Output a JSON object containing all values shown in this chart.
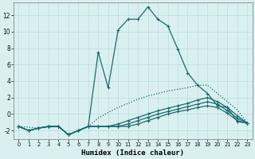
{
  "xlabel": "Humidex (Indice chaleur)",
  "bg_color": "#daf0f0",
  "line_color": "#1a6b6b",
  "grid_color": "#b8dede",
  "xlim": [
    -0.5,
    23.5
  ],
  "ylim": [
    -3.0,
    13.5
  ],
  "xticks": [
    0,
    1,
    2,
    3,
    4,
    5,
    6,
    7,
    8,
    9,
    10,
    11,
    12,
    13,
    14,
    15,
    16,
    17,
    18,
    19,
    20,
    21,
    22,
    23
  ],
  "yticks": [
    -2,
    0,
    2,
    4,
    6,
    8,
    10,
    12
  ],
  "series": [
    {
      "x": [
        0,
        1,
        2,
        3,
        4,
        5,
        6,
        7,
        8,
        9,
        10,
        11,
        12,
        13,
        14,
        15,
        16,
        17,
        18,
        19,
        20,
        21,
        22,
        23
      ],
      "y": [
        -1.5,
        -2.0,
        -1.7,
        -1.5,
        -1.5,
        -2.5,
        -2.0,
        -1.5,
        7.5,
        3.2,
        10.2,
        11.5,
        11.5,
        13.0,
        11.5,
        10.7,
        7.9,
        5.0,
        3.5,
        2.5,
        1.0,
        0.8,
        -0.9,
        -1.1
      ],
      "linestyle": "-",
      "linewidth": 0.9,
      "marker": true
    },
    {
      "x": [
        0,
        2,
        4,
        5,
        6,
        7,
        8,
        9,
        10,
        11,
        12,
        13,
        14,
        15,
        16,
        17,
        18,
        19,
        20,
        21,
        22,
        23
      ],
      "y": [
        -1.5,
        -1.7,
        -1.5,
        -2.5,
        -2.0,
        -1.5,
        -0.5,
        0.2,
        0.8,
        1.3,
        1.8,
        2.2,
        2.5,
        2.8,
        3.0,
        3.2,
        3.5,
        3.5,
        2.5,
        1.5,
        0.5,
        -1.1
      ],
      "linestyle": "dotted",
      "linewidth": 0.9,
      "marker": false
    },
    {
      "x": [
        0,
        1,
        2,
        3,
        4,
        5,
        6,
        7,
        8,
        9,
        10,
        11,
        12,
        13,
        14,
        15,
        16,
        17,
        18,
        19,
        20,
        21,
        22,
        23
      ],
      "y": [
        -1.5,
        -2.0,
        -1.7,
        -1.5,
        -1.5,
        -2.5,
        -2.0,
        -1.5,
        -1.5,
        -1.5,
        -1.2,
        -0.8,
        -0.4,
        0.0,
        0.4,
        0.7,
        1.0,
        1.3,
        1.7,
        2.0,
        1.5,
        0.8,
        -0.2,
        -1.1
      ],
      "linestyle": "-",
      "linewidth": 0.9,
      "marker": true
    },
    {
      "x": [
        0,
        1,
        2,
        3,
        4,
        5,
        6,
        7,
        8,
        9,
        10,
        11,
        12,
        13,
        14,
        15,
        16,
        17,
        18,
        19,
        20,
        21,
        22,
        23
      ],
      "y": [
        -1.5,
        -2.0,
        -1.7,
        -1.5,
        -1.5,
        -2.5,
        -2.0,
        -1.5,
        -1.5,
        -1.5,
        -1.5,
        -1.2,
        -0.8,
        -0.4,
        0.0,
        0.3,
        0.6,
        0.9,
        1.2,
        1.5,
        1.2,
        0.4,
        -0.5,
        -1.1
      ],
      "linestyle": "-",
      "linewidth": 0.9,
      "marker": true
    },
    {
      "x": [
        0,
        1,
        2,
        3,
        4,
        5,
        6,
        7,
        8,
        9,
        10,
        11,
        12,
        13,
        14,
        15,
        16,
        17,
        18,
        19,
        20,
        21,
        22,
        23
      ],
      "y": [
        -1.5,
        -2.0,
        -1.7,
        -1.5,
        -1.5,
        -2.5,
        -2.0,
        -1.5,
        -1.5,
        -1.5,
        -1.5,
        -1.5,
        -1.2,
        -0.8,
        -0.4,
        0.0,
        0.3,
        0.5,
        0.8,
        1.0,
        0.8,
        0.1,
        -0.8,
        -1.1
      ],
      "linestyle": "-",
      "linewidth": 0.9,
      "marker": true
    }
  ]
}
